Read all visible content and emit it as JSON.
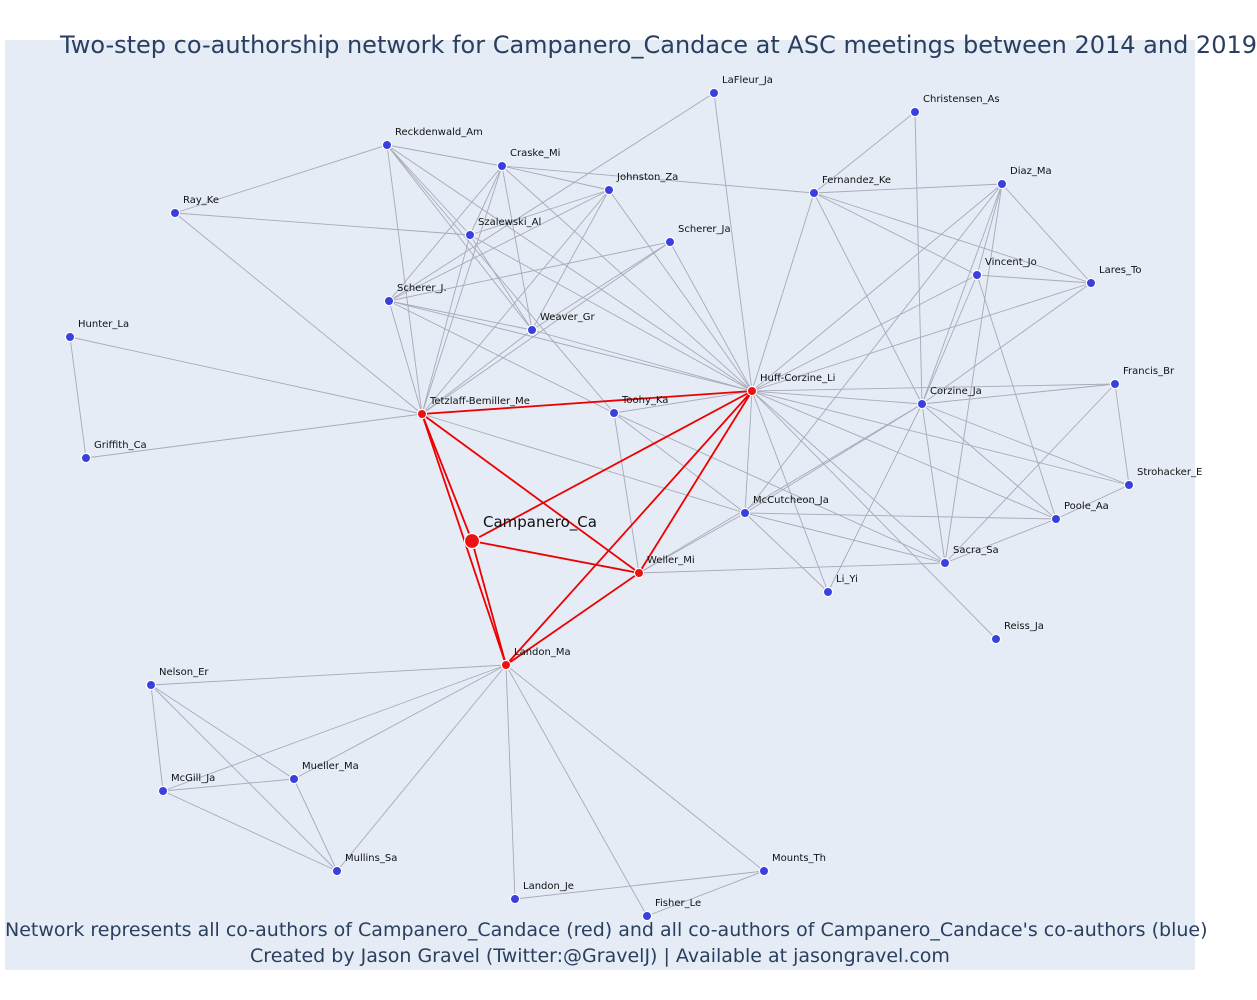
{
  "title": "Two-step co-authorship network for Campanero_Candace at ASC meetings between 2014 and 2019",
  "caption": {
    "line1": "Network represents all co-authors of Campanero_Candace (red) and all co-authors of Campanero_Candace's co-authors (blue)",
    "line2": "Created by Jason Gravel (Twitter:@GravelJ) | Available at jasongravel.com"
  },
  "colors": {
    "background": "#e5ecf6",
    "red": "#ee1111",
    "blue": "#3a40e0",
    "edge": "#a9a9b8",
    "title": "#2a3f5f"
  },
  "nodes": [
    {
      "id": "campanero",
      "label": "Campanero_Ca",
      "group": "focal"
    },
    {
      "id": "tetzlaff",
      "label": "Tetzlaff-Bemiller_Me",
      "group": "red"
    },
    {
      "id": "huff",
      "label": "Huff-Corzine_Li",
      "group": "red"
    },
    {
      "id": "weller",
      "label": "Weller_Mi",
      "group": "red"
    },
    {
      "id": "landon_ma",
      "label": "Landon_Ma",
      "group": "red"
    },
    {
      "id": "lafleur",
      "label": "LaFleur_Ja",
      "group": "blue"
    },
    {
      "id": "christensen",
      "label": "Christensen_As",
      "group": "blue"
    },
    {
      "id": "reckdenwald",
      "label": "Reckdenwald_Am",
      "group": "blue"
    },
    {
      "id": "craske",
      "label": "Craske_Mi",
      "group": "blue"
    },
    {
      "id": "johnston",
      "label": "Johnston_Za",
      "group": "blue"
    },
    {
      "id": "fernandez",
      "label": "Fernandez_Ke",
      "group": "blue"
    },
    {
      "id": "diaz",
      "label": "Diaz_Ma",
      "group": "blue"
    },
    {
      "id": "ray",
      "label": "Ray_Ke",
      "group": "blue"
    },
    {
      "id": "szalewski",
      "label": "Szalewski_Al",
      "group": "blue"
    },
    {
      "id": "scherer_ja",
      "label": "Scherer_Ja",
      "group": "blue"
    },
    {
      "id": "vincent",
      "label": "Vincent_Jo",
      "group": "blue"
    },
    {
      "id": "lares",
      "label": "Lares_To",
      "group": "blue"
    },
    {
      "id": "scherer_j",
      "label": "Scherer_J.",
      "group": "blue"
    },
    {
      "id": "weaver",
      "label": "Weaver_Gr",
      "group": "blue"
    },
    {
      "id": "hunter",
      "label": "Hunter_La",
      "group": "blue"
    },
    {
      "id": "francis",
      "label": "Francis_Br",
      "group": "blue"
    },
    {
      "id": "toohy",
      "label": "Toohy_Ka",
      "group": "blue"
    },
    {
      "id": "corzine",
      "label": "Corzine_Ja",
      "group": "blue"
    },
    {
      "id": "griffith",
      "label": "Griffith_Ca",
      "group": "blue"
    },
    {
      "id": "strohacker",
      "label": "Strohacker_E",
      "group": "blue"
    },
    {
      "id": "mccutcheon",
      "label": "McCutcheon_Ja",
      "group": "blue"
    },
    {
      "id": "poole",
      "label": "Poole_Aa",
      "group": "blue"
    },
    {
      "id": "sacra",
      "label": "Sacra_Sa",
      "group": "blue"
    },
    {
      "id": "li",
      "label": "Li_Yi",
      "group": "blue"
    },
    {
      "id": "reiss",
      "label": "Reiss_Ja",
      "group": "blue"
    },
    {
      "id": "nelson",
      "label": "Nelson_Er",
      "group": "blue"
    },
    {
      "id": "mueller",
      "label": "Mueller_Ma",
      "group": "blue"
    },
    {
      "id": "mcgill",
      "label": "McGill_Ja",
      "group": "blue"
    },
    {
      "id": "mullins",
      "label": "Mullins_Sa",
      "group": "blue"
    },
    {
      "id": "mounts",
      "label": "Mounts_Th",
      "group": "blue"
    },
    {
      "id": "landon_je",
      "label": "Landon_Je",
      "group": "blue"
    },
    {
      "id": "fisher",
      "label": "Fisher_Le",
      "group": "blue"
    }
  ],
  "edges": [
    [
      "campanero",
      "tetzlaff"
    ],
    [
      "campanero",
      "huff"
    ],
    [
      "campanero",
      "weller"
    ],
    [
      "campanero",
      "landon_ma"
    ],
    [
      "tetzlaff",
      "huff"
    ],
    [
      "tetzlaff",
      "weller"
    ],
    [
      "tetzlaff",
      "landon_ma"
    ],
    [
      "huff",
      "weller"
    ],
    [
      "huff",
      "landon_ma"
    ],
    [
      "weller",
      "landon_ma"
    ],
    [
      "tetzlaff",
      "reckdenwald"
    ],
    [
      "tetzlaff",
      "craske"
    ],
    [
      "tetzlaff",
      "johnston"
    ],
    [
      "tetzlaff",
      "ray"
    ],
    [
      "tetzlaff",
      "szalewski"
    ],
    [
      "tetzlaff",
      "scherer_ja"
    ],
    [
      "tetzlaff",
      "scherer_j"
    ],
    [
      "tetzlaff",
      "weaver"
    ],
    [
      "tetzlaff",
      "hunter"
    ],
    [
      "tetzlaff",
      "griffith"
    ],
    [
      "tetzlaff",
      "mccutcheon"
    ],
    [
      "huff",
      "lafleur"
    ],
    [
      "huff",
      "craske"
    ],
    [
      "huff",
      "johnston"
    ],
    [
      "huff",
      "fernandez"
    ],
    [
      "huff",
      "diaz"
    ],
    [
      "huff",
      "szalewski"
    ],
    [
      "huff",
      "scherer_ja"
    ],
    [
      "huff",
      "vincent"
    ],
    [
      "huff",
      "lares"
    ],
    [
      "huff",
      "scherer_j"
    ],
    [
      "huff",
      "weaver"
    ],
    [
      "huff",
      "francis"
    ],
    [
      "huff",
      "toohy"
    ],
    [
      "huff",
      "corzine"
    ],
    [
      "huff",
      "strohacker"
    ],
    [
      "huff",
      "mccutcheon"
    ],
    [
      "huff",
      "poole"
    ],
    [
      "huff",
      "sacra"
    ],
    [
      "huff",
      "li"
    ],
    [
      "huff",
      "reiss"
    ],
    [
      "huff",
      "reckdenwald"
    ],
    [
      "weller",
      "toohy"
    ],
    [
      "weller",
      "mccutcheon"
    ],
    [
      "weller",
      "sacra"
    ],
    [
      "weller",
      "corzine"
    ],
    [
      "landon_ma",
      "nelson"
    ],
    [
      "landon_ma",
      "mueller"
    ],
    [
      "landon_ma",
      "mcgill"
    ],
    [
      "landon_ma",
      "mullins"
    ],
    [
      "landon_ma",
      "mounts"
    ],
    [
      "landon_ma",
      "landon_je"
    ],
    [
      "landon_ma",
      "fisher"
    ],
    [
      "reckdenwald",
      "craske"
    ],
    [
      "reckdenwald",
      "ray"
    ],
    [
      "reckdenwald",
      "szalewski"
    ],
    [
      "reckdenwald",
      "weaver"
    ],
    [
      "reckdenwald",
      "toohy"
    ],
    [
      "craske",
      "johnston"
    ],
    [
      "craske",
      "fernandez"
    ],
    [
      "craske",
      "szalewski"
    ],
    [
      "craske",
      "weaver"
    ],
    [
      "craske",
      "scherer_j"
    ],
    [
      "johnston",
      "weaver"
    ],
    [
      "johnston",
      "szalewski"
    ],
    [
      "johnston",
      "scherer_j"
    ],
    [
      "ray",
      "szalewski"
    ],
    [
      "szalewski",
      "weaver"
    ],
    [
      "scherer_ja",
      "weaver"
    ],
    [
      "scherer_ja",
      "scherer_j"
    ],
    [
      "scherer_j",
      "weaver"
    ],
    [
      "scherer_j",
      "toohy"
    ],
    [
      "scherer_j",
      "lafleur"
    ],
    [
      "fernandez",
      "christensen"
    ],
    [
      "fernandez",
      "diaz"
    ],
    [
      "fernandez",
      "vincent"
    ],
    [
      "fernandez",
      "lares"
    ],
    [
      "fernandez",
      "corzine"
    ],
    [
      "christensen",
      "corzine"
    ],
    [
      "diaz",
      "vincent"
    ],
    [
      "diaz",
      "lares"
    ],
    [
      "diaz",
      "corzine"
    ],
    [
      "diaz",
      "sacra"
    ],
    [
      "diaz",
      "mccutcheon"
    ],
    [
      "vincent",
      "lares"
    ],
    [
      "vincent",
      "corzine"
    ],
    [
      "vincent",
      "poole"
    ],
    [
      "lares",
      "corzine"
    ],
    [
      "corzine",
      "francis"
    ],
    [
      "corzine",
      "strohacker"
    ],
    [
      "corzine",
      "mccutcheon"
    ],
    [
      "corzine",
      "poole"
    ],
    [
      "corzine",
      "sacra"
    ],
    [
      "corzine",
      "li"
    ],
    [
      "francis",
      "strohacker"
    ],
    [
      "francis",
      "sacra"
    ],
    [
      "strohacker",
      "poole"
    ],
    [
      "mccutcheon",
      "toohy"
    ],
    [
      "mccutcheon",
      "poole"
    ],
    [
      "mccutcheon",
      "sacra"
    ],
    [
      "mccutcheon",
      "li"
    ],
    [
      "toohy",
      "sacra"
    ],
    [
      "sacra",
      "poole"
    ],
    [
      "hunter",
      "griffith"
    ],
    [
      "nelson",
      "mcgill"
    ],
    [
      "nelson",
      "mueller"
    ],
    [
      "nelson",
      "mullins"
    ],
    [
      "mcgill",
      "mueller"
    ],
    [
      "mcgill",
      "mullins"
    ],
    [
      "mueller",
      "mullins"
    ],
    [
      "mounts",
      "landon_je"
    ],
    [
      "mounts",
      "fisher"
    ]
  ]
}
